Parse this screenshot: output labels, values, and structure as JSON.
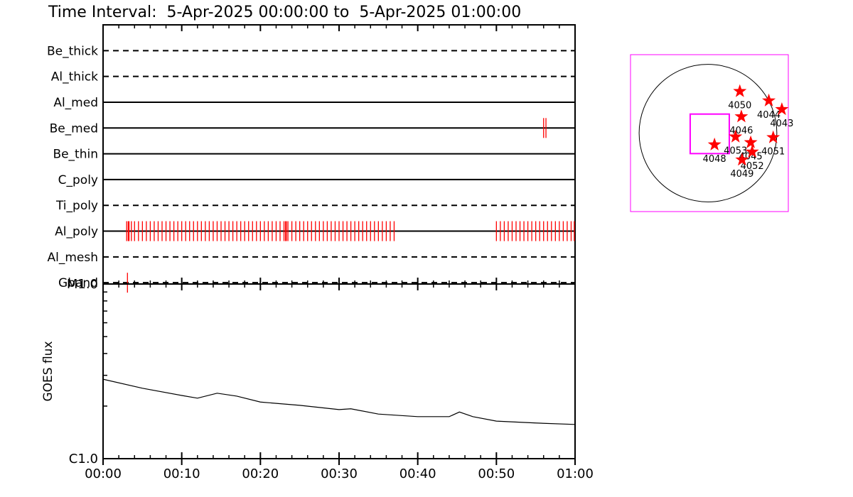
{
  "title": "Time Interval:  5-Apr-2025 00:00:00 to  5-Apr-2025 01:00:00",
  "chart_data": [
    {
      "type": "event",
      "color": "#ff0000",
      "xlim": [
        0,
        60
      ],
      "xticks": [
        {
          "value": 0,
          "label": "00:00"
        },
        {
          "value": 10,
          "label": "00:10"
        },
        {
          "value": 20,
          "label": "00:20"
        },
        {
          "value": 30,
          "label": "00:30"
        },
        {
          "value": 40,
          "label": "00:40"
        },
        {
          "value": 50,
          "label": "00:50"
        },
        {
          "value": 60,
          "label": "01:00"
        }
      ],
      "xminorticks": [
        2,
        4,
        6,
        8,
        12,
        14,
        16,
        18,
        22,
        24,
        26,
        28,
        32,
        34,
        36,
        38,
        42,
        44,
        46,
        48,
        52,
        54,
        56,
        58
      ],
      "series": [
        {
          "name": "Be_thick",
          "dashed": true,
          "values": []
        },
        {
          "name": "Al_thick",
          "dashed": true,
          "values": []
        },
        {
          "name": "Al_med",
          "dashed": false,
          "values": []
        },
        {
          "name": "Be_med",
          "dashed": false,
          "values": [
            56.0,
            56.3
          ]
        },
        {
          "name": "Be_thin",
          "dashed": false,
          "values": []
        },
        {
          "name": "C_poly",
          "dashed": false,
          "values": []
        },
        {
          "name": "Ti_poly",
          "dashed": true,
          "values": []
        },
        {
          "name": "Al_poly",
          "dashed": false,
          "values": [
            3.0,
            3.2,
            3.3,
            3.6,
            4.0,
            4.5,
            5.0,
            5.5,
            6.0,
            6.5,
            7.0,
            7.5,
            8.0,
            8.5,
            9.0,
            9.5,
            10.0,
            10.5,
            11.0,
            11.5,
            12.0,
            12.5,
            13.0,
            13.5,
            14.0,
            14.5,
            15.0,
            15.5,
            16.0,
            16.5,
            17.0,
            17.5,
            18.0,
            18.5,
            19.0,
            19.5,
            20.0,
            20.5,
            21.0,
            21.5,
            22.0,
            22.5,
            23.0,
            23.2,
            23.3,
            23.5,
            24.0,
            24.5,
            25.0,
            25.5,
            26.0,
            26.5,
            27.0,
            27.5,
            28.0,
            28.5,
            29.0,
            29.5,
            30.0,
            30.5,
            31.0,
            31.5,
            32.0,
            32.5,
            33.0,
            33.5,
            34.0,
            34.5,
            35.0,
            35.5,
            36.0,
            36.5,
            37.0,
            50.0,
            50.5,
            51.0,
            51.5,
            52.0,
            52.5,
            53.0,
            53.5,
            54.0,
            54.5,
            55.0,
            55.5,
            56.0,
            56.5,
            57.0,
            57.5,
            58.0,
            58.5,
            59.0,
            59.5,
            59.9
          ]
        },
        {
          "name": "Al_mesh",
          "dashed": true,
          "values": []
        },
        {
          "name": "Gband",
          "dashed": true,
          "values": [
            3.1
          ]
        }
      ]
    },
    {
      "type": "line",
      "ylabel": "GOES flux",
      "log": true,
      "xlim": [
        0,
        60
      ],
      "ylim": [
        1e-06,
        1e-05
      ],
      "yticks": [
        {
          "value": 1e-06,
          "label": "C1.0"
        },
        {
          "value": 1e-05,
          "label": "M1.0"
        }
      ],
      "yminorticks": [
        2e-06,
        3e-06,
        4e-06,
        5e-06,
        6e-06,
        7e-06,
        8e-06,
        9e-06
      ],
      "color": "#000000",
      "x": [
        0,
        5,
        10,
        12,
        14.5,
        17,
        20,
        25,
        30,
        31.5,
        35,
        40,
        44,
        45.3,
        47,
        50,
        55,
        60
      ],
      "values": [
        2.85e-06,
        2.53e-06,
        2.3e-06,
        2.22e-06,
        2.37e-06,
        2.28e-06,
        2.11e-06,
        2.02e-06,
        1.91e-06,
        1.93e-06,
        1.8e-06,
        1.74e-06,
        1.74e-06,
        1.85e-06,
        1.74e-06,
        1.64e-06,
        1.6e-06,
        1.57e-06
      ]
    },
    {
      "type": "map",
      "xlim": [
        -1080,
        1120
      ],
      "ylim": [
        -1100,
        1100
      ],
      "radius": 960,
      "box_color": "#ff00ff",
      "star_color": "#ff0000",
      "fov": {
        "x": [
          -248,
          297
        ],
        "y": [
          -287,
          267
        ]
      },
      "categories": [
        "4050",
        "4044",
        "4043",
        "4046",
        "4053",
        "4045",
        "4051",
        "4052",
        "4049",
        "4048"
      ],
      "x": [
        444,
        848,
        1030,
        465,
        384,
        596,
        909,
        616,
        475,
        91
      ],
      "values": [
        586,
        455,
        333,
        232,
        -51,
        -131,
        -61,
        -263,
        -374,
        -162
      ]
    }
  ]
}
